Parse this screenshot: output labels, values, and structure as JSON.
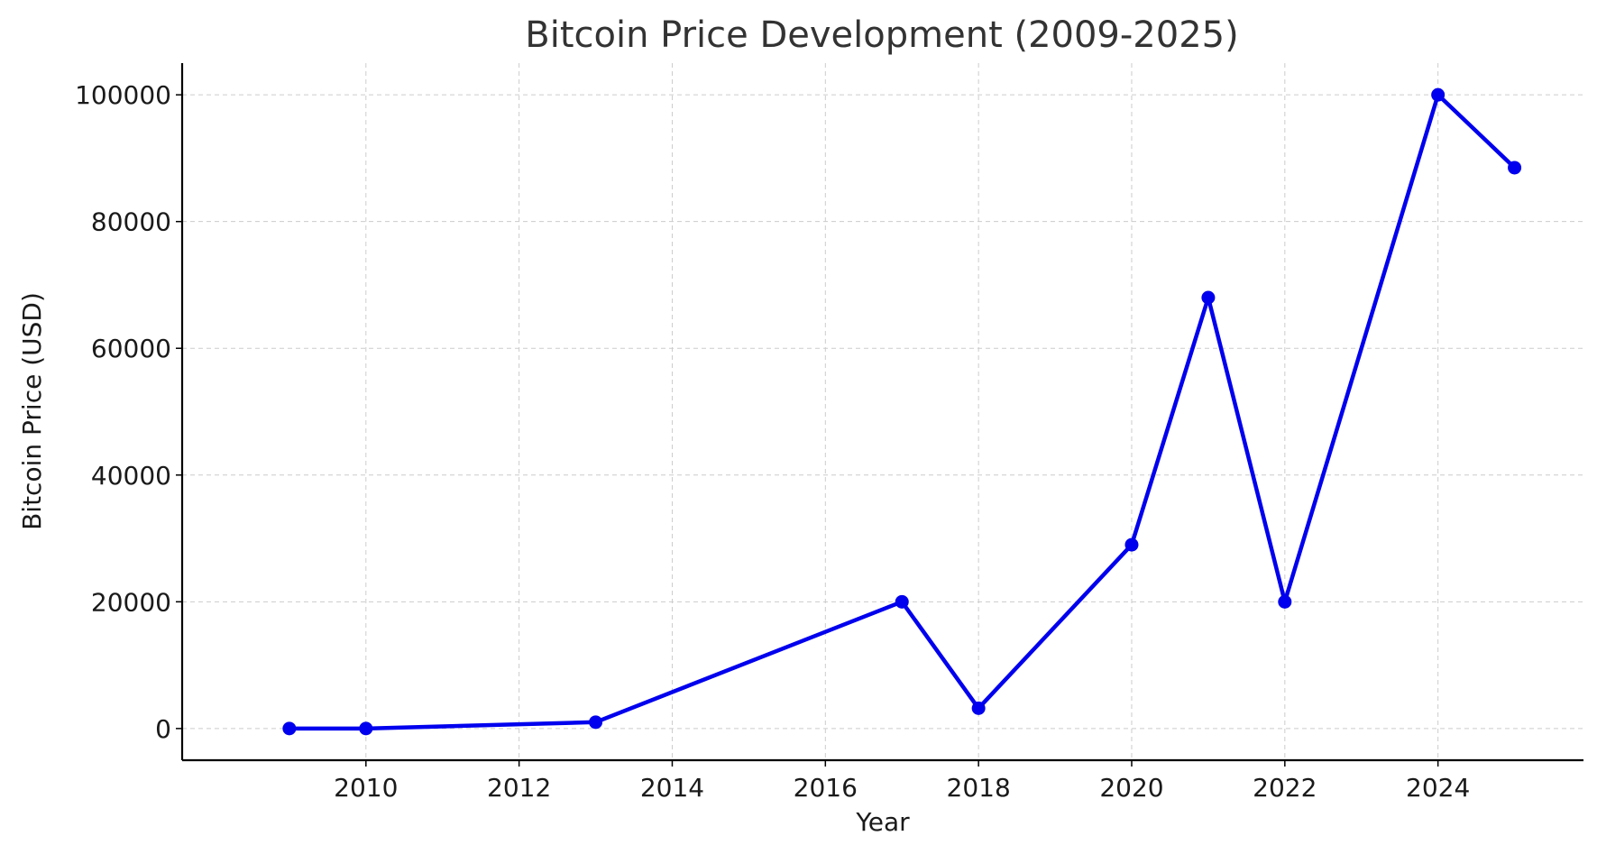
{
  "chart_data": {
    "type": "line",
    "title": "Bitcoin Price Development (2009-2025)",
    "xlabel": "Year",
    "ylabel": "Bitcoin Price (USD)",
    "xlim": [
      2007.6,
      2025.9
    ],
    "ylim": [
      -5000,
      105000
    ],
    "xticks": [
      2010,
      2012,
      2014,
      2016,
      2018,
      2020,
      2022,
      2024
    ],
    "yticks": [
      0,
      20000,
      40000,
      60000,
      80000,
      100000
    ],
    "grid": true,
    "series": [
      {
        "color": "#0000ee",
        "marker": "circle",
        "x": [
          2009,
          2010,
          2013,
          2017,
          2018,
          2020,
          2021,
          2022,
          2024,
          2025
        ],
        "y": [
          0,
          0,
          1000,
          20000,
          3200,
          29000,
          68000,
          20000,
          100000,
          88500
        ]
      }
    ]
  }
}
